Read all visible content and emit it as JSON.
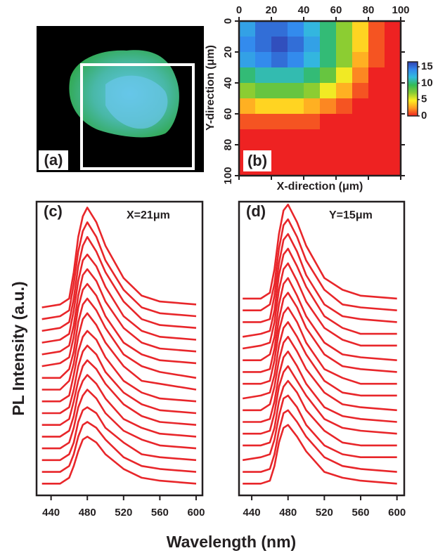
{
  "chart_data": [
    {
      "type": "image",
      "label": "(a)"
    },
    {
      "type": "heatmap",
      "label": "(b)",
      "xlabel": "X-direction (μm)",
      "ylabel": "Y-direction (μm)",
      "x": [
        5,
        15,
        25,
        35,
        45,
        55,
        65,
        75,
        85,
        95
      ],
      "y": [
        5,
        15,
        25,
        35,
        45,
        55,
        65,
        75,
        85,
        95
      ],
      "z": [
        [
          13,
          15,
          15,
          14,
          12,
          10,
          7,
          4,
          1,
          0
        ],
        [
          14,
          15,
          16,
          15,
          13,
          10,
          7,
          4,
          1,
          0
        ],
        [
          13,
          14,
          15,
          14,
          12,
          10,
          7,
          3,
          1,
          0
        ],
        [
          10,
          11,
          11,
          11,
          10,
          8,
          5,
          2,
          0,
          0
        ],
        [
          7,
          8,
          8,
          8,
          7,
          5,
          3,
          1,
          0,
          0
        ],
        [
          3,
          4,
          4,
          4,
          3,
          2,
          1,
          0,
          0,
          0
        ],
        [
          1,
          1,
          1,
          1,
          1,
          0,
          0,
          0,
          0,
          0
        ],
        [
          0,
          0,
          0,
          0,
          0,
          0,
          0,
          0,
          0,
          0
        ],
        [
          0,
          0,
          0,
          0,
          0,
          0,
          0,
          0,
          0,
          0
        ],
        [
          0,
          0,
          0,
          0,
          0,
          0,
          0,
          0,
          0,
          0
        ]
      ],
      "xlim": [
        0,
        100
      ],
      "xticks": [
        0,
        20,
        40,
        60,
        80,
        100
      ],
      "ylim": [
        0,
        100
      ],
      "yticks": [
        0,
        20,
        40,
        60,
        80,
        100
      ],
      "y_inverted": true,
      "zlim": [
        0,
        16.5
      ],
      "zticks": [
        0,
        5,
        10,
        15
      ],
      "colormap": [
        "#ee2222",
        "#ff9922",
        "#ffee22",
        "#88cc33",
        "#33bb55",
        "#33bbdd",
        "#3388ee",
        "#3040b0"
      ]
    },
    {
      "type": "line",
      "label": "(c)",
      "annotation": "X=21μm",
      "ylabel": "PL Intensity (a.u.)",
      "xlabel": "Wavelength (nm)",
      "color": "#e8262a",
      "xlim": [
        424,
        607
      ],
      "xticks": [
        440,
        480,
        520,
        560,
        600
      ],
      "ylim": [
        0,
        100
      ],
      "x": [
        430,
        450,
        460,
        465,
        470,
        475,
        480,
        490,
        500,
        520,
        540,
        560,
        600
      ],
      "series": [
        {
          "values": [
            4,
            4,
            6,
            10,
            15,
            19,
            20,
            18,
            14,
            9,
            6,
            5,
            4
          ]
        },
        {
          "values": [
            8,
            8,
            10,
            14,
            20,
            24,
            25,
            23,
            19,
            13,
            10,
            9,
            8
          ]
        },
        {
          "values": [
            12,
            12,
            14,
            18,
            25,
            29,
            30,
            28,
            23,
            18,
            14,
            13,
            12
          ]
        },
        {
          "values": [
            16,
            16,
            18,
            23,
            30,
            34,
            36,
            33,
            28,
            22,
            19,
            17,
            16
          ]
        },
        {
          "values": [
            20,
            20,
            22,
            27,
            35,
            39,
            41,
            38,
            33,
            26,
            23,
            21,
            20
          ]
        },
        {
          "values": [
            24,
            24,
            26,
            32,
            39,
            44,
            46,
            43,
            38,
            31,
            27,
            25,
            24
          ]
        },
        {
          "values": [
            28,
            28,
            30,
            36,
            44,
            49,
            51,
            48,
            42,
            35,
            31,
            29,
            28
          ]
        },
        {
          "values": [
            32,
            32,
            34,
            41,
            49,
            54,
            56,
            53,
            47,
            39,
            35,
            33,
            32
          ]
        },
        {
          "values": [
            36,
            36,
            39,
            45,
            54,
            60,
            62,
            58,
            52,
            44,
            39,
            38,
            36
          ]
        },
        {
          "values": [
            40,
            40,
            43,
            49,
            59,
            65,
            67,
            63,
            57,
            48,
            44,
            42,
            40
          ]
        },
        {
          "values": [
            44,
            45,
            47,
            54,
            64,
            70,
            72,
            68,
            61,
            52,
            48,
            46,
            45
          ]
        },
        {
          "values": [
            48,
            49,
            51,
            58,
            68,
            75,
            77,
            73,
            66,
            57,
            52,
            50,
            49
          ]
        },
        {
          "values": [
            52,
            53,
            55,
            63,
            73,
            80,
            82,
            78,
            71,
            61,
            56,
            54,
            53
          ]
        },
        {
          "values": [
            56,
            57,
            59,
            67,
            78,
            85,
            88,
            83,
            76,
            66,
            60,
            58,
            57
          ]
        },
        {
          "values": [
            60,
            61,
            63,
            72,
            83,
            90,
            93,
            88,
            80,
            70,
            64,
            62,
            61
          ]
        },
        {
          "values": [
            64,
            65,
            67,
            76,
            88,
            95,
            98,
            93,
            85,
            74,
            68,
            66,
            65
          ]
        }
      ]
    },
    {
      "type": "line",
      "label": "(d)",
      "annotation": "Y=15μm",
      "color": "#e8262a",
      "xlim": [
        426,
        608
      ],
      "xticks": [
        440,
        480,
        520,
        560,
        600
      ],
      "ylim": [
        0,
        100
      ],
      "x": [
        430,
        450,
        460,
        465,
        470,
        475,
        480,
        490,
        500,
        520,
        540,
        560,
        600
      ],
      "series": [
        {
          "values": [
            4,
            4,
            5,
            10,
            18,
            23,
            24,
            20,
            15,
            8,
            6,
            5,
            4
          ]
        },
        {
          "values": [
            8,
            8,
            9,
            14,
            22,
            28,
            29,
            25,
            20,
            13,
            10,
            9,
            8
          ]
        },
        {
          "values": [
            12,
            13,
            14,
            19,
            27,
            33,
            34,
            30,
            24,
            17,
            14,
            13,
            13
          ]
        },
        {
          "values": [
            17,
            17,
            18,
            23,
            32,
            37,
            39,
            35,
            29,
            22,
            18,
            17,
            17
          ]
        },
        {
          "values": [
            21,
            21,
            22,
            28,
            37,
            42,
            44,
            39,
            34,
            26,
            23,
            22,
            21
          ]
        },
        {
          "values": [
            25,
            25,
            26,
            32,
            41,
            47,
            49,
            44,
            38,
            30,
            27,
            26,
            25
          ]
        },
        {
          "values": [
            29,
            29,
            31,
            37,
            46,
            52,
            54,
            49,
            43,
            35,
            31,
            30,
            29
          ]
        },
        {
          "values": [
            33,
            34,
            35,
            41,
            51,
            57,
            59,
            54,
            48,
            39,
            35,
            34,
            34
          ]
        },
        {
          "values": [
            38,
            38,
            39,
            46,
            56,
            62,
            64,
            59,
            52,
            43,
            40,
            38,
            38
          ]
        },
        {
          "values": [
            42,
            42,
            43,
            50,
            60,
            67,
            69,
            64,
            57,
            48,
            44,
            43,
            42
          ]
        },
        {
          "values": [
            46,
            46,
            48,
            54,
            65,
            72,
            74,
            68,
            61,
            52,
            48,
            47,
            46
          ]
        },
        {
          "values": [
            50,
            51,
            52,
            59,
            70,
            77,
            79,
            73,
            66,
            57,
            53,
            51,
            51
          ]
        },
        {
          "values": [
            54,
            55,
            56,
            63,
            75,
            82,
            84,
            78,
            71,
            61,
            57,
            55,
            55
          ]
        },
        {
          "values": [
            59,
            59,
            60,
            68,
            79,
            87,
            89,
            83,
            75,
            65,
            61,
            60,
            59
          ]
        },
        {
          "values": [
            63,
            63,
            65,
            72,
            84,
            92,
            94,
            88,
            80,
            70,
            65,
            64,
            63
          ]
        },
        {
          "values": [
            67,
            67,
            69,
            77,
            89,
            97,
            99,
            93,
            85,
            74,
            70,
            68,
            67
          ]
        }
      ]
    }
  ]
}
